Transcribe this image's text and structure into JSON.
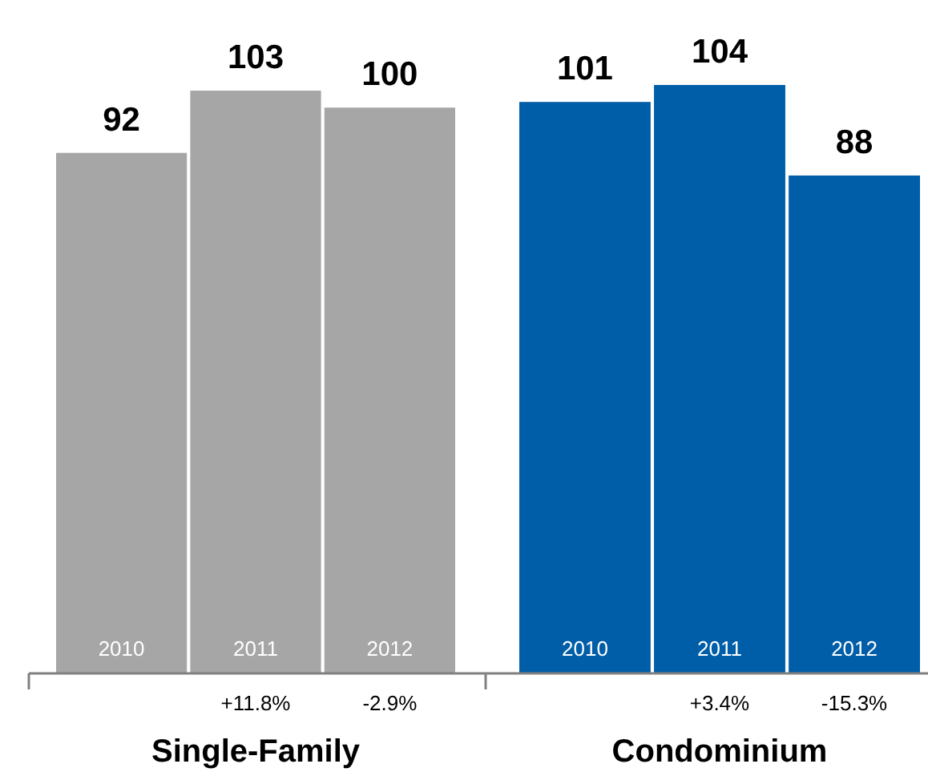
{
  "chart_data": [
    {
      "type": "bar",
      "xlabel": "Single-Family",
      "categories": [
        "2010",
        "2011",
        "2012"
      ],
      "values": [
        92,
        103,
        100
      ],
      "color": "#a6a6a6",
      "data_labels": true,
      "annotations": [
        "+11.8%",
        "-2.9%"
      ]
    },
    {
      "type": "bar",
      "xlabel": "Condominium",
      "categories": [
        "2010",
        "2011",
        "2012"
      ],
      "values": [
        101,
        104,
        88
      ],
      "color": "#005ea8",
      "data_labels": true,
      "annotations": [
        "+3.4%",
        "-15.3%"
      ]
    }
  ]
}
